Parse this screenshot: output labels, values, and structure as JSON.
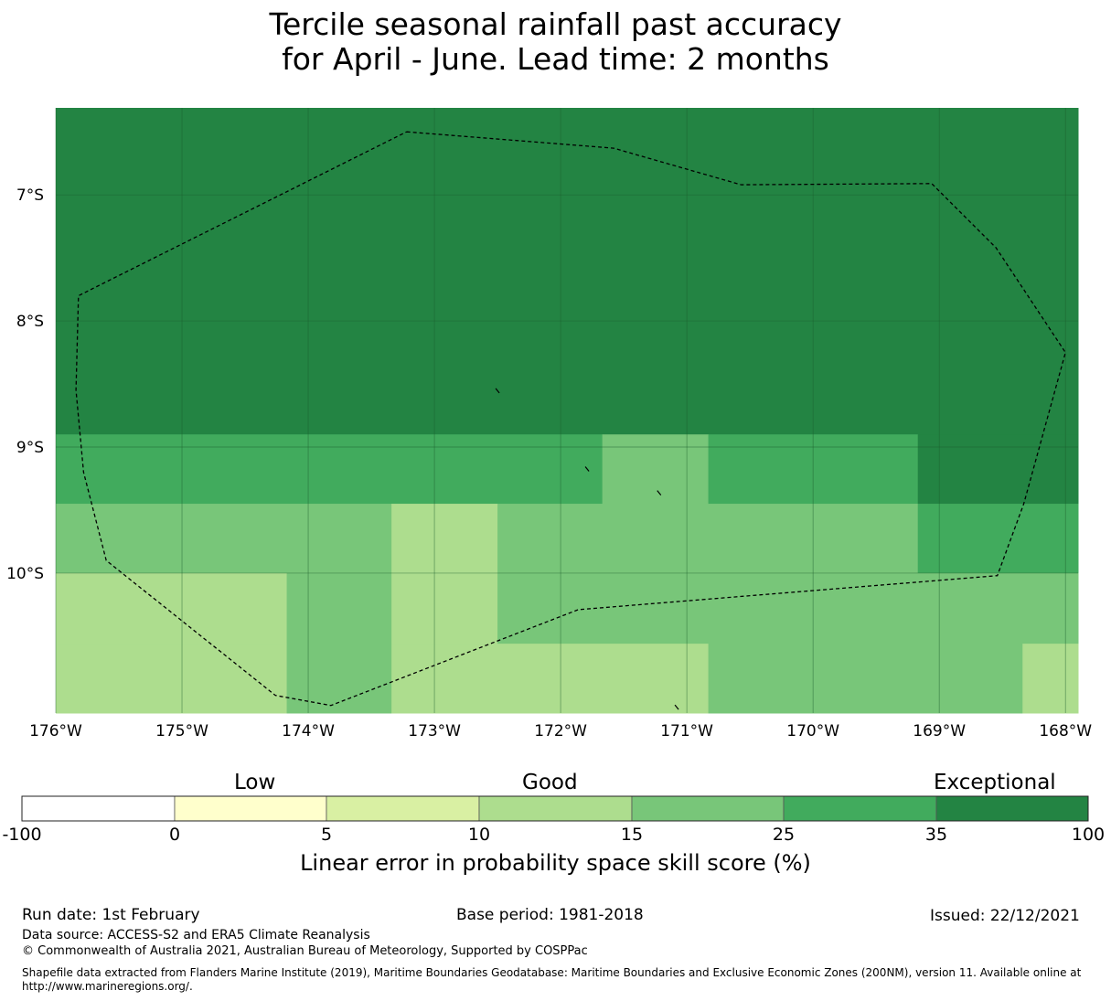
{
  "title_line1": "Tercile seasonal rainfall past accuracy",
  "title_line2": "for April - June. Lead time: 2 months",
  "lon_labels": [
    "176°W",
    "175°W",
    "174°W",
    "173°W",
    "172°W",
    "171°W",
    "170°W",
    "169°W",
    "168°W"
  ],
  "lat_labels": [
    "7°S",
    "8°S",
    "9°S",
    "10°S"
  ],
  "map_extent": {
    "lon_min": -176.0,
    "lon_max": -167.9,
    "lat_max": -6.31,
    "lat_min": -11.11
  },
  "skill_grid": {
    "rows": [
      {
        "lat_top": -6.31,
        "lat_bottom": -8.9,
        "cells": [
          {
            "lon_from": -176.0,
            "lon_to": -167.9,
            "class": 6
          }
        ]
      },
      {
        "lat_top": -8.9,
        "lat_bottom": -9.45,
        "cells": [
          {
            "lon_from": -176.0,
            "lon_to": -171.67,
            "class": 5
          },
          {
            "lon_from": -171.67,
            "lon_to": -170.83,
            "class": 4
          },
          {
            "lon_from": -170.83,
            "lon_to": -169.17,
            "class": 5
          },
          {
            "lon_from": -169.17,
            "lon_to": -167.9,
            "class": 6
          }
        ]
      },
      {
        "lat_top": -9.45,
        "lat_bottom": -10.0,
        "cells": [
          {
            "lon_from": -176.0,
            "lon_to": -173.34,
            "class": 4
          },
          {
            "lon_from": -173.34,
            "lon_to": -172.5,
            "class": 3
          },
          {
            "lon_from": -172.5,
            "lon_to": -169.17,
            "class": 4
          },
          {
            "lon_from": -169.17,
            "lon_to": -167.9,
            "class": 5
          }
        ]
      },
      {
        "lat_top": -10.0,
        "lat_bottom": -10.56,
        "cells": [
          {
            "lon_from": -176.0,
            "lon_to": -174.17,
            "class": 3
          },
          {
            "lon_from": -174.17,
            "lon_to": -173.34,
            "class": 4
          },
          {
            "lon_from": -173.34,
            "lon_to": -172.5,
            "class": 3
          },
          {
            "lon_from": -172.5,
            "lon_to": -167.9,
            "class": 4
          }
        ]
      },
      {
        "lat_top": -10.56,
        "lat_bottom": -11.11,
        "cells": [
          {
            "lon_from": -176.0,
            "lon_to": -174.17,
            "class": 3
          },
          {
            "lon_from": -174.17,
            "lon_to": -173.34,
            "class": 4
          },
          {
            "lon_from": -173.34,
            "lon_to": -170.83,
            "class": 3
          },
          {
            "lon_from": -170.83,
            "lon_to": -168.34,
            "class": 4
          },
          {
            "lon_from": -168.34,
            "lon_to": -167.9,
            "class": 3
          }
        ]
      }
    ]
  },
  "eez_boundary": [
    [
      -173.22,
      -6.5
    ],
    [
      -171.58,
      -6.63
    ],
    [
      -170.57,
      -6.92
    ],
    [
      -169.06,
      -6.91
    ],
    [
      -168.55,
      -7.42
    ],
    [
      -168.0,
      -8.25
    ],
    [
      -168.33,
      -9.45
    ],
    [
      -168.54,
      -10.02
    ],
    [
      -171.86,
      -10.29
    ],
    [
      -173.82,
      -11.05
    ],
    [
      -174.26,
      -10.97
    ],
    [
      -175.6,
      -9.9
    ],
    [
      -175.78,
      -9.2
    ],
    [
      -175.84,
      -8.55
    ],
    [
      -175.82,
      -7.8
    ],
    [
      -173.22,
      -6.5
    ]
  ],
  "islands": [
    [
      -172.5,
      -8.55
    ],
    [
      -171.79,
      -9.17
    ],
    [
      -171.22,
      -9.36
    ],
    [
      -171.08,
      -11.06
    ]
  ],
  "colorbar": {
    "colors": [
      "#ffffff",
      "#ffffcc",
      "#d9f0a3",
      "#addd8e",
      "#78c679",
      "#41ab5d",
      "#238443"
    ],
    "ticks": [
      "-100",
      "0",
      "5",
      "10",
      "15",
      "25",
      "35",
      "100"
    ],
    "category_labels": [
      "Low",
      "Good",
      "Exceptional"
    ],
    "xlabel": "Linear error in probability space skill score (%)"
  },
  "footer": {
    "run_date": "Run date: 1st February",
    "base_period": "Base period: 1981-2018",
    "issued": "Issued: 22/12/2021",
    "data_source": "Data source: ACCESS-S2 and ERA5 Climate Reanalysis",
    "copyright": "© Commonwealth of Australia 2021, Australian Bureau of Meteorology, Supported by COSPPac",
    "shapefile": "Shapefile data extracted from Flanders Marine Institute (2019), Maritime Boundaries Geodatabase: Maritime Boundaries and Exclusive Economic Zones (200NM), version 11. Available online at http://www.marineregions.org/."
  }
}
